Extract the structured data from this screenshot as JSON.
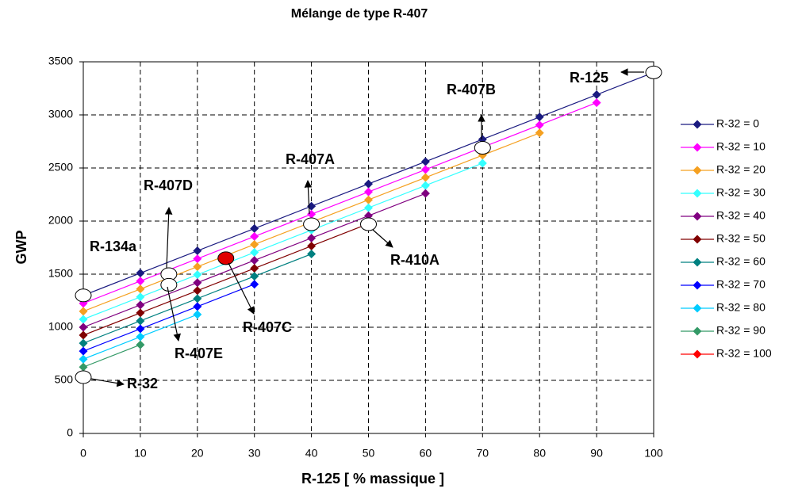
{
  "chart_data": {
    "type": "line",
    "title": "Mélange de type R-407",
    "x_label": "R-125 [ % massique ]",
    "y_label": "GWP",
    "xlim": [
      0,
      100
    ],
    "xticks": [
      0,
      10,
      20,
      30,
      40,
      50,
      60,
      70,
      80,
      90,
      100
    ],
    "ylim": [
      0,
      3500
    ],
    "yticks": [
      0,
      500,
      1000,
      1500,
      2000,
      2500,
      3000,
      3500
    ],
    "grid": true,
    "legend": "right",
    "series": [
      {
        "name": "R-32 = 0",
        "color": "#1a1a80",
        "x": [
          0,
          10,
          20,
          30,
          40,
          50,
          60,
          70,
          80,
          90,
          100
        ],
        "values": [
          1300,
          1510,
          1720,
          1930,
          2140,
          2350,
          2560,
          2770,
          2980,
          3190,
          3400
        ]
      },
      {
        "name": "R-32 = 10",
        "color": "#ff00ff",
        "x": [
          0,
          10,
          20,
          30,
          40,
          50,
          60,
          70,
          80,
          90
        ],
        "values": [
          1225,
          1435,
          1645,
          1855,
          2065,
          2275,
          2485,
          2695,
          2905,
          3115
        ]
      },
      {
        "name": "R-32 = 20",
        "color": "#f5a020",
        "x": [
          0,
          10,
          20,
          30,
          40,
          50,
          60,
          70,
          80
        ],
        "values": [
          1150,
          1360,
          1570,
          1780,
          1990,
          2200,
          2410,
          2620,
          2830
        ]
      },
      {
        "name": "R-32 = 30",
        "color": "#33ffff",
        "x": [
          0,
          10,
          20,
          30,
          40,
          50,
          60,
          70
        ],
        "values": [
          1075,
          1285,
          1495,
          1705,
          1915,
          2125,
          2335,
          2545
        ]
      },
      {
        "name": "R-32 = 40",
        "color": "#800080",
        "x": [
          0,
          10,
          20,
          30,
          40,
          50,
          60
        ],
        "values": [
          1000,
          1210,
          1420,
          1630,
          1840,
          2050,
          2260
        ]
      },
      {
        "name": "R-32 = 50",
        "color": "#800000",
        "x": [
          0,
          10,
          20,
          30,
          40,
          50
        ],
        "values": [
          925,
          1135,
          1345,
          1555,
          1765,
          1975
        ]
      },
      {
        "name": "R-32 = 60",
        "color": "#008080",
        "x": [
          0,
          10,
          20,
          30,
          40
        ],
        "values": [
          850,
          1060,
          1270,
          1480,
          1690
        ]
      },
      {
        "name": "R-32 = 70",
        "color": "#0000ff",
        "x": [
          0,
          10,
          20,
          30
        ],
        "values": [
          775,
          985,
          1195,
          1405
        ]
      },
      {
        "name": "R-32 = 80",
        "color": "#00ccff",
        "x": [
          0,
          10,
          20
        ],
        "values": [
          700,
          910,
          1120
        ]
      },
      {
        "name": "R-32 = 90",
        "color": "#339966",
        "x": [
          0,
          10
        ],
        "values": [
          625,
          835
        ]
      },
      {
        "name": "R-32 = 100",
        "color": "#ff0000",
        "x": [
          0
        ],
        "values": [
          550
        ]
      }
    ],
    "annotations": [
      {
        "text": "R-134a",
        "x": 0,
        "y": 1300
      },
      {
        "text": "R-407D",
        "x": 15,
        "y": 1500
      },
      {
        "text": "R-407E",
        "x": 15,
        "y": 1400
      },
      {
        "text": "R-407C",
        "x": 25,
        "y": 1650
      },
      {
        "text": "R-407A",
        "x": 40,
        "y": 1970
      },
      {
        "text": "R-410A",
        "x": 50,
        "y": 1970
      },
      {
        "text": "R-407B",
        "x": 70,
        "y": 2690
      },
      {
        "text": "R-125",
        "x": 100,
        "y": 3400
      },
      {
        "text": "R-32",
        "x": 0,
        "y": 530
      }
    ]
  }
}
